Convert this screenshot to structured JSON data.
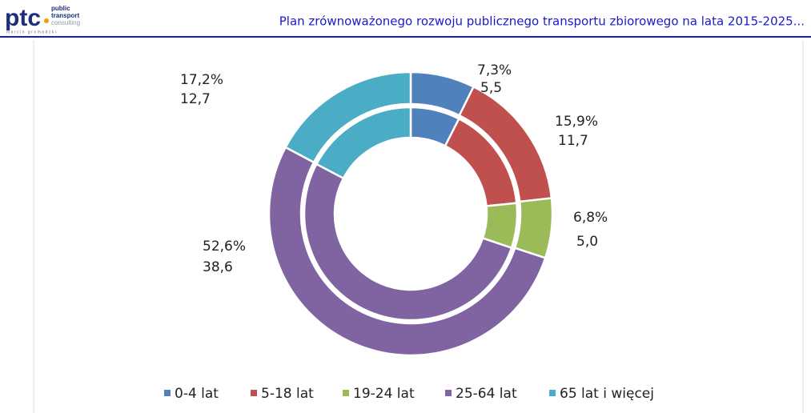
{
  "header": {
    "logo": "ptc",
    "logo_lines": [
      "public",
      "transport",
      "consulting"
    ],
    "logo_footer": "marcin gromadzki",
    "title": "Plan zrównoważonego rozwoju publicznego transportu zbiorowego na lata 2015-2025..."
  },
  "chart_data": {
    "type": "donut",
    "categories": [
      "0-4 lat",
      "5-18 lat",
      "19-24 lat",
      "25-64 lat",
      "65 lat i więcej"
    ],
    "colors": [
      "#4f81bd",
      "#c0504d",
      "#9bbb59",
      "#8064a2",
      "#4bacc6"
    ],
    "series": [
      {
        "ring": "outer",
        "values": [
          7.3,
          15.9,
          6.8,
          52.6,
          17.2
        ],
        "value_labels": [
          "7,3%",
          "15,9%",
          "6,8%",
          "52,6%",
          "17,2%"
        ]
      },
      {
        "ring": "inner",
        "values": [
          5.5,
          11.7,
          5.0,
          38.6,
          12.7
        ],
        "value_labels": [
          "5,5",
          "11,7",
          "5,0",
          "38,6",
          "12,7"
        ]
      }
    ],
    "legend": "bottom"
  }
}
